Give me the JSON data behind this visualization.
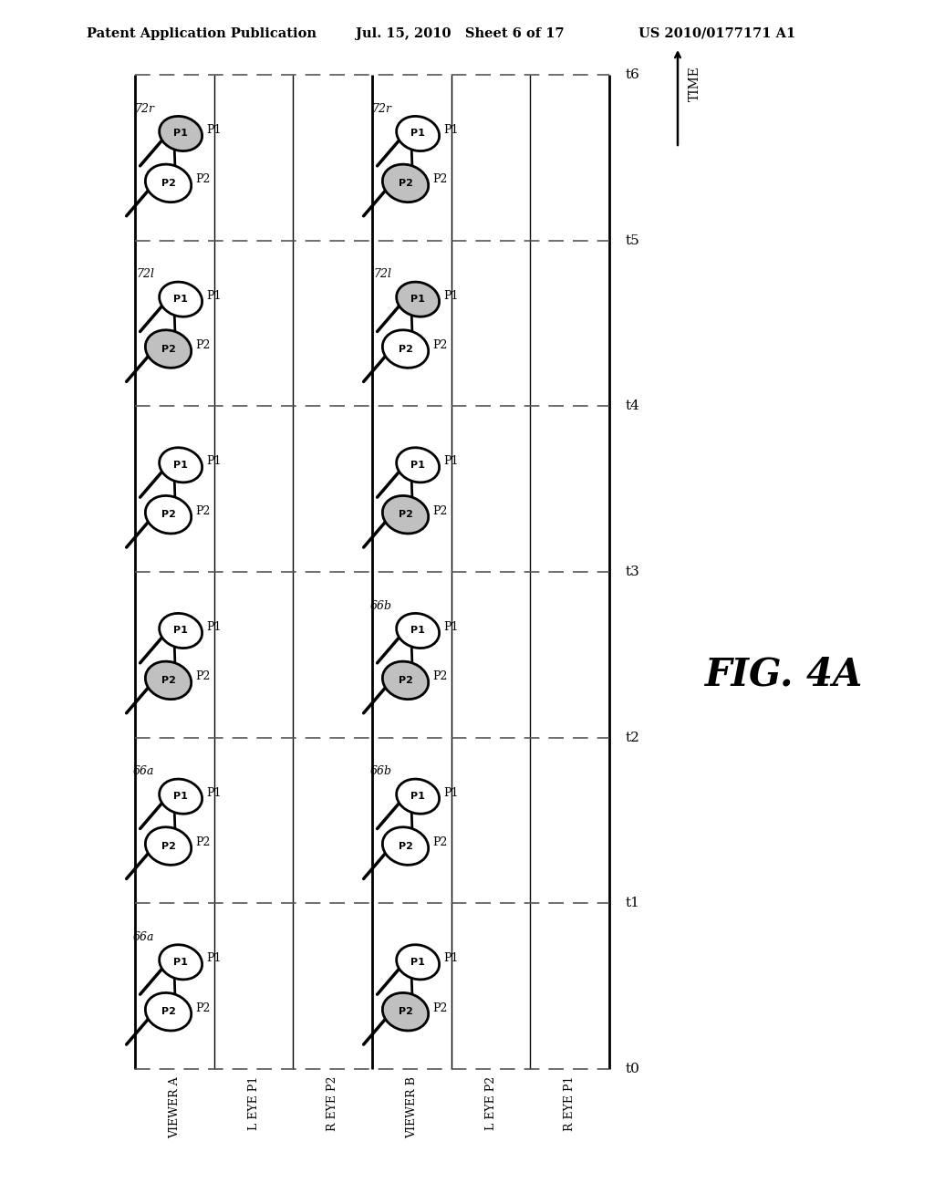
{
  "header_left": "Patent Application Publication",
  "header_mid": "Jul. 15, 2010   Sheet 6 of 17",
  "header_right": "US 2010/0177171 A1",
  "fig_label": "FIG. 4A",
  "time_label": "TIME",
  "row_labels_bottom": [
    "VIEWER A",
    "L EYE P1",
    "R EYE P2",
    "VIEWER B",
    "L EYE P2",
    "R EYE P1"
  ],
  "time_ticks": [
    "t0",
    "t1",
    "t2",
    "t3",
    "t4",
    "t5",
    "t6"
  ],
  "bg_color": "#ffffff",
  "glasses_fill_open": "#ffffff",
  "glasses_fill_shaded": "#c0c0c0",
  "glasses_stroke": "#000000",
  "glasses_specs": [
    {
      "row": 0,
      "col": 0,
      "top_shaded": false,
      "bot_shaded": false,
      "ann": "66a",
      "p_top": "P1",
      "p_bot": "P2"
    },
    {
      "row": 0,
      "col": 1,
      "top_shaded": false,
      "bot_shaded": false,
      "ann": "66a",
      "p_top": "P1",
      "p_bot": "P2"
    },
    {
      "row": 0,
      "col": 2,
      "top_shaded": false,
      "bot_shaded": false,
      "ann": null,
      "p_top": "P1",
      "p_bot": "P2"
    },
    {
      "row": 0,
      "col": 3,
      "top_shaded": false,
      "bot_shaded": false,
      "ann": null,
      "p_top": "P1",
      "p_bot": "P2"
    },
    {
      "row": 0,
      "col": 4,
      "top_shaded": false,
      "bot_shaded": false,
      "ann": "72l",
      "p_top": "P1",
      "p_bot": "P2"
    },
    {
      "row": 0,
      "col": 5,
      "top_shaded": false,
      "bot_shaded": false,
      "ann": "72r",
      "p_top": "P1",
      "p_bot": "P2"
    },
    {
      "row": 3,
      "col": 0,
      "top_shaded": false,
      "bot_shaded": true,
      "ann": null,
      "p_top": "P1",
      "p_bot": "P2"
    },
    {
      "row": 3,
      "col": 1,
      "top_shaded": true,
      "bot_shaded": false,
      "ann": "66b",
      "p_top": "P1",
      "p_bot": "P2"
    },
    {
      "row": 3,
      "col": 2,
      "top_shaded": true,
      "bot_shaded": false,
      "ann": "66b",
      "p_top": "P1",
      "p_bot": "P2"
    },
    {
      "row": 3,
      "col": 3,
      "top_shaded": false,
      "bot_shaded": true,
      "ann": null,
      "p_top": "P1",
      "p_bot": "P2"
    },
    {
      "row": 3,
      "col": 4,
      "top_shaded": true,
      "bot_shaded": false,
      "ann": "72l",
      "p_top": "P1",
      "p_bot": "P2"
    },
    {
      "row": 3,
      "col": 5,
      "top_shaded": false,
      "bot_shaded": true,
      "ann": "72r",
      "p_top": "P1",
      "p_bot": "P2"
    }
  ]
}
